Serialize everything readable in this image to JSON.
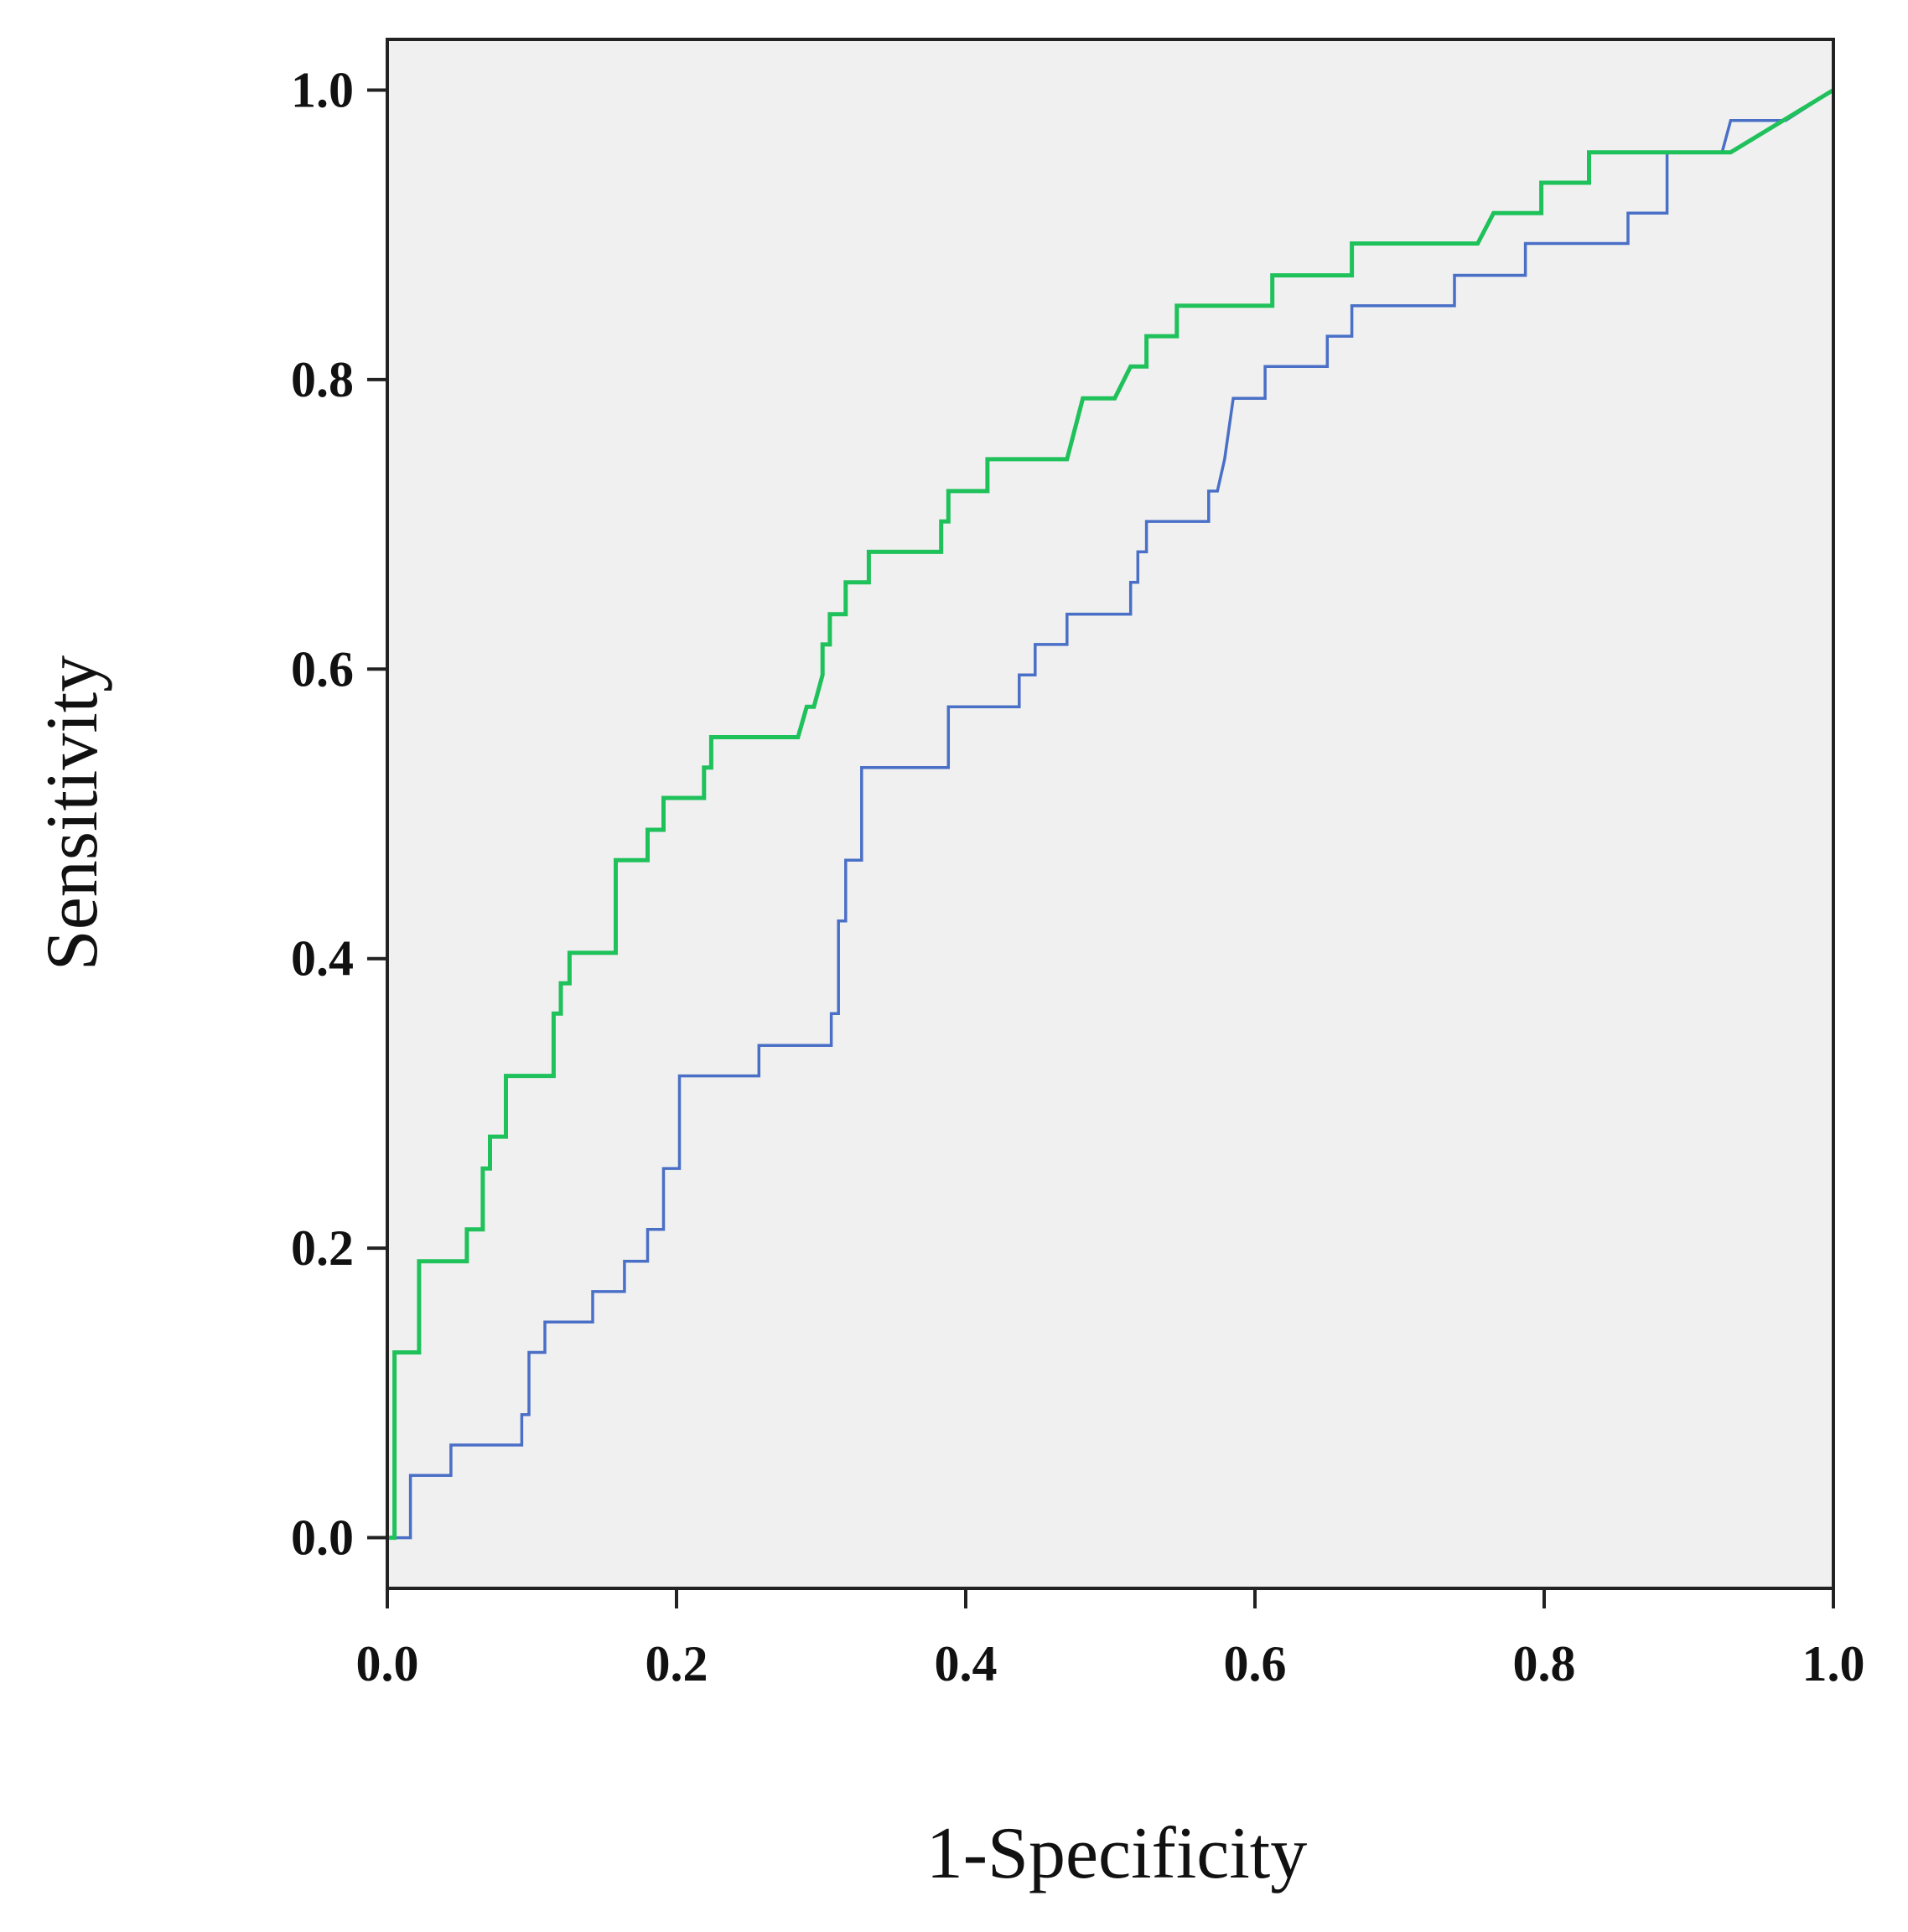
{
  "chart_data": {
    "type": "line",
    "title": "",
    "xlabel": "1-Specificity",
    "ylabel": "Sensitivity",
    "xlim": [
      0,
      1
    ],
    "ylim": [
      -0.035,
      1.035
    ],
    "x_ticks": [
      "0.0",
      "0.2",
      "0.4",
      "0.6",
      "0.8",
      "1.0"
    ],
    "y_ticks": [
      "0.0",
      "0.2",
      "0.4",
      "0.6",
      "0.8",
      "1.0"
    ],
    "grid": false,
    "plot_background": "#f0f0f0",
    "axis_color": "#222222",
    "legend": "none",
    "series": [
      {
        "name": "blue-curve",
        "color": "#4a6fc6",
        "points": [
          [
            0,
            0
          ],
          [
            0.016,
            0
          ],
          [
            0.016,
            0.043
          ],
          [
            0.044,
            0.043
          ],
          [
            0.044,
            0.064
          ],
          [
            0.093,
            0.064
          ],
          [
            0.093,
            0.085
          ],
          [
            0.098,
            0.085
          ],
          [
            0.098,
            0.128
          ],
          [
            0.109,
            0.128
          ],
          [
            0.109,
            0.149
          ],
          [
            0.142,
            0.149
          ],
          [
            0.142,
            0.17
          ],
          [
            0.164,
            0.17
          ],
          [
            0.164,
            0.191
          ],
          [
            0.18,
            0.191
          ],
          [
            0.18,
            0.213
          ],
          [
            0.191,
            0.213
          ],
          [
            0.191,
            0.255
          ],
          [
            0.202,
            0.255
          ],
          [
            0.202,
            0.319
          ],
          [
            0.257,
            0.319
          ],
          [
            0.257,
            0.34
          ],
          [
            0.307,
            0.34
          ],
          [
            0.307,
            0.362
          ],
          [
            0.312,
            0.362
          ],
          [
            0.312,
            0.426
          ],
          [
            0.317,
            0.426
          ],
          [
            0.317,
            0.468
          ],
          [
            0.328,
            0.468
          ],
          [
            0.328,
            0.532
          ],
          [
            0.388,
            0.532
          ],
          [
            0.388,
            0.574
          ],
          [
            0.437,
            0.574
          ],
          [
            0.437,
            0.596
          ],
          [
            0.448,
            0.596
          ],
          [
            0.448,
            0.617
          ],
          [
            0.47,
            0.617
          ],
          [
            0.47,
            0.638
          ],
          [
            0.514,
            0.638
          ],
          [
            0.514,
            0.66
          ],
          [
            0.519,
            0.66
          ],
          [
            0.519,
            0.681
          ],
          [
            0.525,
            0.681
          ],
          [
            0.525,
            0.702
          ],
          [
            0.568,
            0.702
          ],
          [
            0.568,
            0.723
          ],
          [
            0.574,
            0.723
          ],
          [
            0.579,
            0.745
          ],
          [
            0.585,
            0.787
          ],
          [
            0.607,
            0.787
          ],
          [
            0.607,
            0.809
          ],
          [
            0.65,
            0.809
          ],
          [
            0.65,
            0.83
          ],
          [
            0.667,
            0.83
          ],
          [
            0.667,
            0.851
          ],
          [
            0.738,
            0.851
          ],
          [
            0.738,
            0.872
          ],
          [
            0.787,
            0.872
          ],
          [
            0.787,
            0.894
          ],
          [
            0.858,
            0.894
          ],
          [
            0.858,
            0.915
          ],
          [
            0.885,
            0.915
          ],
          [
            0.885,
            0.957
          ],
          [
            0.923,
            0.957
          ],
          [
            0.929,
            0.979
          ],
          [
            0.967,
            0.979
          ],
          [
            1,
            1
          ]
        ]
      },
      {
        "name": "green-curve",
        "color": "#1fc15b",
        "points": [
          [
            0,
            0
          ],
          [
            0.005,
            0
          ],
          [
            0.005,
            0.128
          ],
          [
            0.022,
            0.128
          ],
          [
            0.022,
            0.191
          ],
          [
            0.055,
            0.191
          ],
          [
            0.055,
            0.213
          ],
          [
            0.066,
            0.213
          ],
          [
            0.066,
            0.255
          ],
          [
            0.071,
            0.255
          ],
          [
            0.071,
            0.277
          ],
          [
            0.082,
            0.277
          ],
          [
            0.082,
            0.319
          ],
          [
            0.115,
            0.319
          ],
          [
            0.115,
            0.362
          ],
          [
            0.12,
            0.362
          ],
          [
            0.12,
            0.383
          ],
          [
            0.126,
            0.383
          ],
          [
            0.126,
            0.404
          ],
          [
            0.158,
            0.404
          ],
          [
            0.158,
            0.468
          ],
          [
            0.18,
            0.468
          ],
          [
            0.18,
            0.489
          ],
          [
            0.191,
            0.489
          ],
          [
            0.191,
            0.511
          ],
          [
            0.219,
            0.511
          ],
          [
            0.219,
            0.532
          ],
          [
            0.224,
            0.532
          ],
          [
            0.224,
            0.553
          ],
          [
            0.284,
            0.553
          ],
          [
            0.29,
            0.574
          ],
          [
            0.295,
            0.574
          ],
          [
            0.301,
            0.596
          ],
          [
            0.301,
            0.617
          ],
          [
            0.306,
            0.617
          ],
          [
            0.306,
            0.638
          ],
          [
            0.317,
            0.638
          ],
          [
            0.317,
            0.66
          ],
          [
            0.333,
            0.66
          ],
          [
            0.333,
            0.681
          ],
          [
            0.383,
            0.681
          ],
          [
            0.383,
            0.702
          ],
          [
            0.388,
            0.702
          ],
          [
            0.388,
            0.723
          ],
          [
            0.415,
            0.723
          ],
          [
            0.415,
            0.745
          ],
          [
            0.47,
            0.745
          ],
          [
            0.481,
            0.787
          ],
          [
            0.503,
            0.787
          ],
          [
            0.514,
            0.809
          ],
          [
            0.525,
            0.809
          ],
          [
            0.525,
            0.83
          ],
          [
            0.546,
            0.83
          ],
          [
            0.546,
            0.851
          ],
          [
            0.612,
            0.851
          ],
          [
            0.612,
            0.872
          ],
          [
            0.667,
            0.872
          ],
          [
            0.667,
            0.894
          ],
          [
            0.754,
            0.894
          ],
          [
            0.765,
            0.915
          ],
          [
            0.798,
            0.915
          ],
          [
            0.798,
            0.936
          ],
          [
            0.831,
            0.936
          ],
          [
            0.831,
            0.957
          ],
          [
            0.929,
            0.957
          ],
          [
            1,
            1
          ]
        ]
      }
    ]
  }
}
